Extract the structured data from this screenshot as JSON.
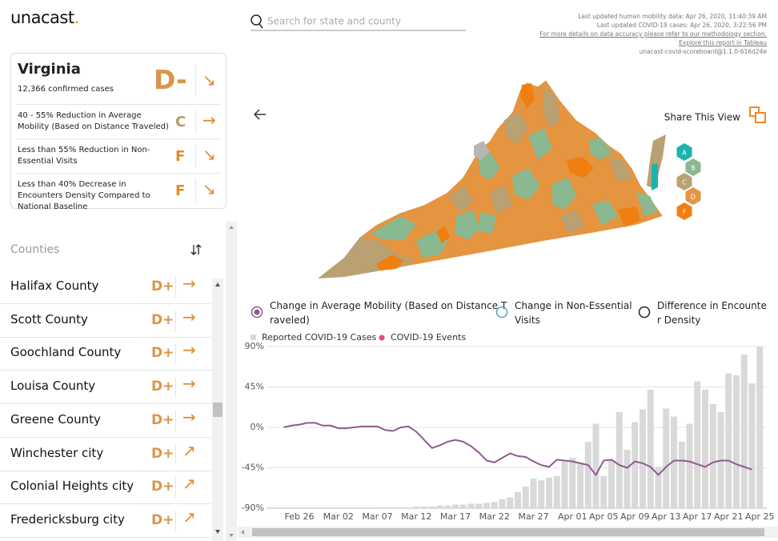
{
  "logo": {
    "text": "unacast",
    "dot": "."
  },
  "search": {
    "placeholder": "Search for state and county"
  },
  "updates": [
    "Last updated human mobility data: Apr 26, 2020, 11:40:39 AM",
    "Last updated COVID-19 cases: Apr 26, 2020, 3:22:56 PM",
    "For more details on data accuracy please refer to our methodology section.",
    "Explore this report in Tableau",
    "unacast-covid-scoreboard@1.1.0-616d24e"
  ],
  "state": {
    "name": "Virginia",
    "cases": "12,366 confirmed cases",
    "grade": "D-",
    "trend": "↘",
    "metrics": [
      {
        "text": "40 - 55% Reduction in Average Mobility (Based on Distance Traveled)",
        "grade": "C",
        "trend": "→"
      },
      {
        "text": "Less than 55% Reduction in Non-Essential Visits",
        "grade": "F",
        "trend": "↘"
      },
      {
        "text": "Less than 40% Decrease in Encounters Density Compared to National Baseline",
        "grade": "F",
        "trend": "↘"
      }
    ]
  },
  "counties": {
    "title": "Counties",
    "rows": [
      {
        "name": "Halifax County",
        "grade": "D+",
        "trend": "→"
      },
      {
        "name": "Scott County",
        "grade": "D+",
        "trend": "→"
      },
      {
        "name": "Goochland County",
        "grade": "D+",
        "trend": "→"
      },
      {
        "name": "Louisa County",
        "grade": "D+",
        "trend": "→"
      },
      {
        "name": "Greene County",
        "grade": "D+",
        "trend": "→"
      },
      {
        "name": "Winchester city",
        "grade": "D+",
        "trend": "↗"
      },
      {
        "name": "Colonial Heights city",
        "grade": "D+",
        "trend": "↗"
      },
      {
        "name": "Fredericksburg city",
        "grade": "D+",
        "trend": "↗"
      }
    ]
  },
  "share": "Share This View",
  "map_legend": [
    {
      "label": "A",
      "color": "#1ab3ad"
    },
    {
      "label": "B",
      "color": "#8ab891"
    },
    {
      "label": "C",
      "color": "#b9a173"
    },
    {
      "label": "D",
      "color": "#e59545"
    },
    {
      "label": "F",
      "color": "#f07f12"
    }
  ],
  "chart_data": {
    "type": "combo",
    "categories": [
      null,
      null,
      "Feb 26",
      null,
      null,
      null,
      null,
      "Mar 02",
      null,
      null,
      null,
      null,
      "Mar 07",
      null,
      null,
      null,
      null,
      "Mar 12",
      null,
      null,
      null,
      null,
      "Mar 17",
      null,
      null,
      null,
      null,
      "Mar 22",
      null,
      null,
      null,
      null,
      "Mar 27",
      null,
      null,
      null,
      null,
      "Apr 01",
      null,
      null,
      null,
      "Apr 05",
      null,
      null,
      null,
      "Apr 09",
      null,
      null,
      null,
      "Apr 13",
      null,
      null,
      null,
      "Apr 17",
      null,
      null,
      null,
      "Apr 21",
      null,
      null,
      null,
      "Apr 25"
    ],
    "ylim": [
      -90,
      90
    ],
    "yticks": [
      {
        "value": 90,
        "label": "90%"
      },
      {
        "value": 45,
        "label": "45%"
      },
      {
        "value": 0,
        "label": "0%"
      },
      {
        "value": -45,
        "label": "-45%"
      },
      {
        "value": -90,
        "label": "-90%"
      }
    ],
    "grid": true,
    "series": [
      {
        "name": "Reported COVID-19 Cases",
        "type": "bar",
        "color": "#d9d9d9",
        "values": [
          null,
          null,
          null,
          null,
          null,
          null,
          null,
          null,
          null,
          null,
          null,
          null,
          -89,
          -89,
          -89,
          -89,
          -89,
          -88,
          -88,
          -88,
          -87,
          -87,
          -86,
          -86,
          -85,
          -85,
          -84,
          -83,
          -80,
          -78,
          -72,
          -66,
          -57,
          -59,
          -56,
          -54,
          -37,
          -34,
          -39,
          -16,
          4,
          -54,
          -37,
          17,
          -25,
          6,
          20,
          42,
          -44,
          21,
          12,
          -16,
          4,
          51,
          42,
          26,
          17,
          60,
          58,
          81,
          49,
          90
        ]
      },
      {
        "name": "Change in Average Mobility (Based on Distance Traveled)",
        "type": "line",
        "color": "#8e5b91",
        "values": [
          0,
          2,
          3,
          5,
          5,
          2,
          2,
          -1,
          -1,
          0,
          1,
          1,
          1,
          -3,
          -4,
          0,
          1,
          -5,
          -14,
          -23,
          -20,
          -16,
          -14,
          -16,
          -21,
          -28,
          -37,
          -39,
          -34,
          -29,
          -32,
          -33,
          -38,
          -42,
          -44,
          -36,
          -37,
          -38,
          -40,
          -42,
          -53,
          -37,
          -36,
          -42,
          -45,
          -38,
          -40,
          -44,
          -53,
          -44,
          -37,
          -37,
          -38,
          -41,
          -44,
          -39,
          -37,
          -37,
          -41,
          -44,
          -47,
          null
        ]
      }
    ],
    "events": {
      "name": "COVID-19 Events",
      "color": "#e2506c"
    },
    "other_metrics": [
      {
        "name": "Change in Non-Essential Visits",
        "color": "#5c9fb6"
      },
      {
        "name": "Difference in Encounter Density",
        "color": "#222222"
      }
    ]
  }
}
